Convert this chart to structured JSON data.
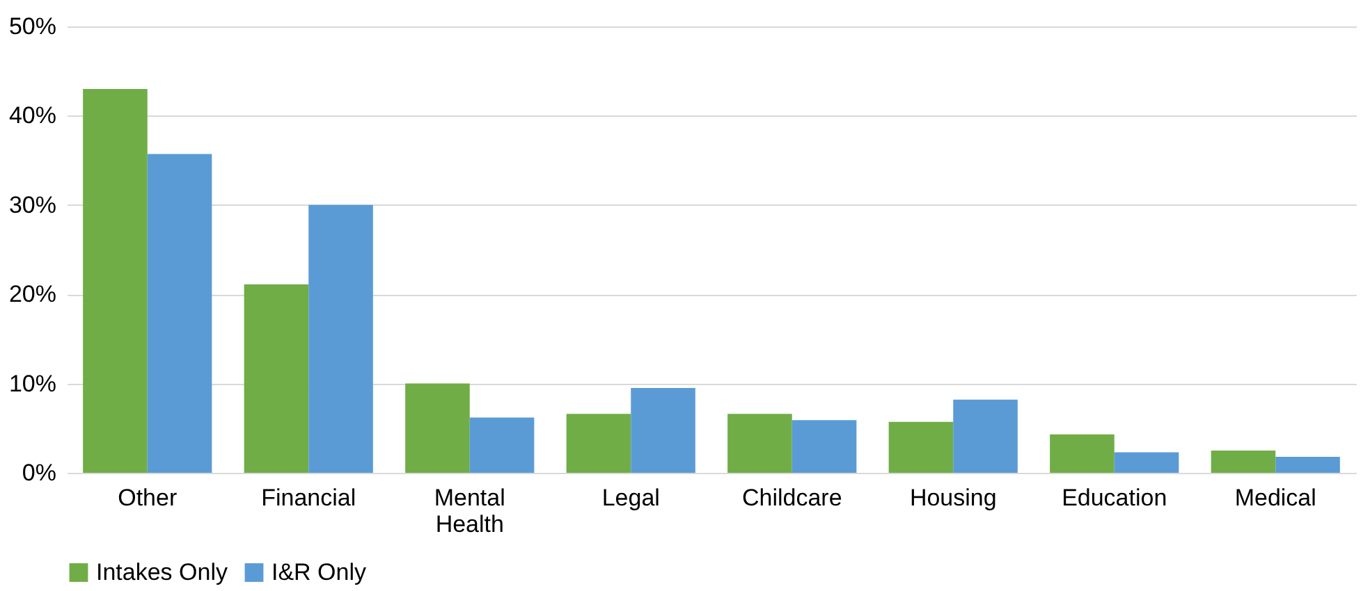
{
  "chart_data": {
    "type": "bar",
    "categories": [
      "Other",
      "Financial",
      "Mental Health",
      "Legal",
      "Childcare",
      "Housing",
      "Education",
      "Medical"
    ],
    "series": [
      {
        "name": "Intakes Only",
        "color": "#70ad47",
        "values": [
          43.0,
          21.1,
          10.0,
          6.6,
          6.6,
          5.7,
          4.3,
          2.5
        ]
      },
      {
        "name": "I&R Only",
        "color": "#5b9bd5",
        "values": [
          35.7,
          30.0,
          6.2,
          9.5,
          5.9,
          8.2,
          2.3,
          1.8
        ]
      }
    ],
    "ylim": [
      0,
      50
    ],
    "yticks": [
      {
        "value": 0,
        "label": "0%"
      },
      {
        "value": 10,
        "label": "10%"
      },
      {
        "value": 20,
        "label": "20%"
      },
      {
        "value": 30,
        "label": "30%"
      },
      {
        "value": 40,
        "label": "40%"
      },
      {
        "value": 50,
        "label": "50%"
      }
    ],
    "grid": "y",
    "legend": "bottom"
  }
}
